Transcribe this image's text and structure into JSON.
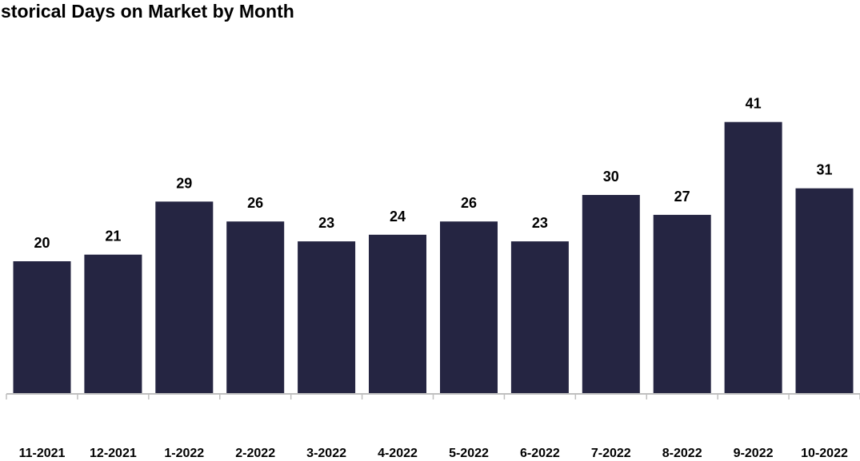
{
  "chart_data": {
    "type": "bar",
    "title": "Historical Days on Market by Month",
    "categories": [
      "11-2021",
      "12-2021",
      "1-2022",
      "2-2022",
      "3-2022",
      "4-2022",
      "5-2022",
      "6-2022",
      "7-2022",
      "8-2022",
      "9-2022",
      "10-2022"
    ],
    "values": [
      20,
      21,
      29,
      26,
      23,
      24,
      26,
      23,
      30,
      27,
      41,
      31
    ],
    "xlabel": "",
    "ylabel": "",
    "ylim": [
      0,
      45
    ],
    "grid": false,
    "legend": "none",
    "data_labels": true,
    "colors": {
      "bar": "#252542",
      "axis": "#bfbfbf",
      "text": "#000000"
    }
  }
}
